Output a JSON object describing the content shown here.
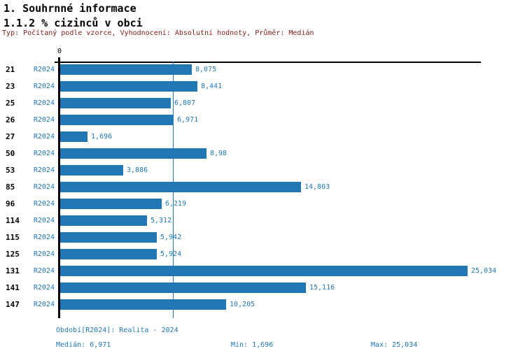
{
  "header": {
    "title": "1. Souhrnné informace",
    "subtitle": "1.1.2 % cizinců v obci",
    "meta": "Typ: Počítaný podle vzorce, Vyhodnocení: Absolutní hodnoty, Průměr: Medián"
  },
  "colors": {
    "bar_blue": "#2077b4",
    "meta_red": "#801c1c",
    "axis_black": "#000000"
  },
  "chart_data": {
    "type": "bar",
    "orientation": "horizontal",
    "title": "1.1.2 % cizinců v obci",
    "series_name": "R2024",
    "x_axis": {
      "zero_label": "0",
      "min": 0,
      "gridlines": false
    },
    "median_value": 6.971,
    "min_value": 1.696,
    "max_value": 25.034,
    "rows": [
      {
        "category": "21",
        "period": "R2024",
        "value": 8.075,
        "label": "8,075"
      },
      {
        "category": "23",
        "period": "R2024",
        "value": 8.441,
        "label": "8,441"
      },
      {
        "category": "25",
        "period": "R2024",
        "value": 6.807,
        "label": "6,807"
      },
      {
        "category": "26",
        "period": "R2024",
        "value": 6.971,
        "label": "6,971"
      },
      {
        "category": "27",
        "period": "R2024",
        "value": 1.696,
        "label": "1,696"
      },
      {
        "category": "50",
        "period": "R2024",
        "value": 8.98,
        "label": "8,98"
      },
      {
        "category": "53",
        "period": "R2024",
        "value": 3.886,
        "label": "3,886"
      },
      {
        "category": "85",
        "period": "R2024",
        "value": 14.803,
        "label": "14,803"
      },
      {
        "category": "96",
        "period": "R2024",
        "value": 6.219,
        "label": "6,219"
      },
      {
        "category": "114",
        "period": "R2024",
        "value": 5.312,
        "label": "5,312"
      },
      {
        "category": "115",
        "period": "R2024",
        "value": 5.942,
        "label": "5,942"
      },
      {
        "category": "125",
        "period": "R2024",
        "value": 5.924,
        "label": "5,924"
      },
      {
        "category": "131",
        "period": "R2024",
        "value": 25.034,
        "label": "25,034"
      },
      {
        "category": "141",
        "period": "R2024",
        "value": 15.116,
        "label": "15,116"
      },
      {
        "category": "147",
        "period": "R2024",
        "value": 10.205,
        "label": "10,205"
      }
    ]
  },
  "footer": {
    "period_line": "Období[R2024]: Realita - 2024",
    "median": "Medián: 6,971",
    "min": "Min: 1,696",
    "max": "Max: 25,034"
  }
}
